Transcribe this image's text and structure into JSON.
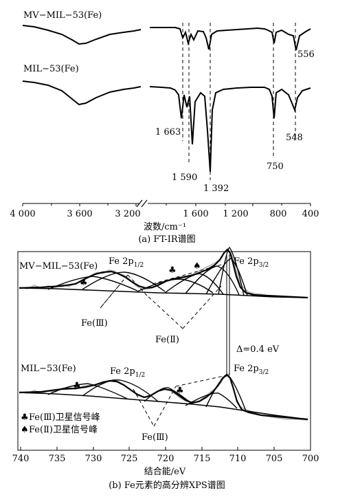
{
  "panel_a": {
    "caption": "(a) FT-IR谱图",
    "xlabel": "波数/cm⁻¹",
    "xticks": [
      "4 000",
      "3 600",
      "3 200",
      "1 600",
      "1 200",
      "800",
      "400"
    ],
    "series_top": "MV−MIL−53(Fe)",
    "series_bottom": "MIL−53(Fe)",
    "peaks_bottom": [
      "1 663",
      "1 590",
      "1 392",
      "750",
      "548"
    ],
    "peak_top": "556"
  },
  "panel_b": {
    "caption": "(b) Fe元素的高分辨XPS谱图",
    "xlabel": "结合能/eV",
    "xticks": [
      "740",
      "735",
      "730",
      "725",
      "720",
      "715",
      "710",
      "705",
      "700"
    ],
    "series_top": "MV−MIL−53(Fe)",
    "series_bottom": "MIL−53(Fe)",
    "fe2p12": "Fe 2p",
    "fe2p12_sub": "1/2",
    "fe2p32": "Fe 2p",
    "fe2p32_sub": "3/2",
    "fe3": "Fe(Ⅲ)",
    "fe2": "Fe(Ⅱ)",
    "delta": "Δ=0.4 eV",
    "club": "♣",
    "spade": "♠",
    "legend_fe3": "Fe(Ⅲ)卫星信号峰",
    "legend_fe2": "Fe(Ⅱ)卫星信号峰"
  },
  "chart_data": [
    {
      "type": "line",
      "xlabel": "波数/cm⁻¹",
      "series": [
        {
          "name": "MV−MIL−53(Fe)",
          "peaks_cm-1": [
            1663,
            1590,
            1392,
            750,
            556
          ]
        },
        {
          "name": "MIL−53(Fe)",
          "peaks_cm-1": [
            1663,
            1590,
            1392,
            750,
            548
          ]
        }
      ]
    },
    {
      "type": "line",
      "xlabel": "结合能/eV",
      "xlim": [
        740,
        700
      ],
      "series": [
        {
          "name": "MV−MIL−53(Fe)",
          "peaks_eV": [
            725,
            711.4
          ]
        },
        {
          "name": "MIL−53(Fe)",
          "peaks_eV": [
            725,
            711.8
          ]
        }
      ],
      "annotations": [
        "Fe 2p1/2",
        "Fe 2p3/2",
        "Δ=0.4 eV"
      ]
    }
  ]
}
